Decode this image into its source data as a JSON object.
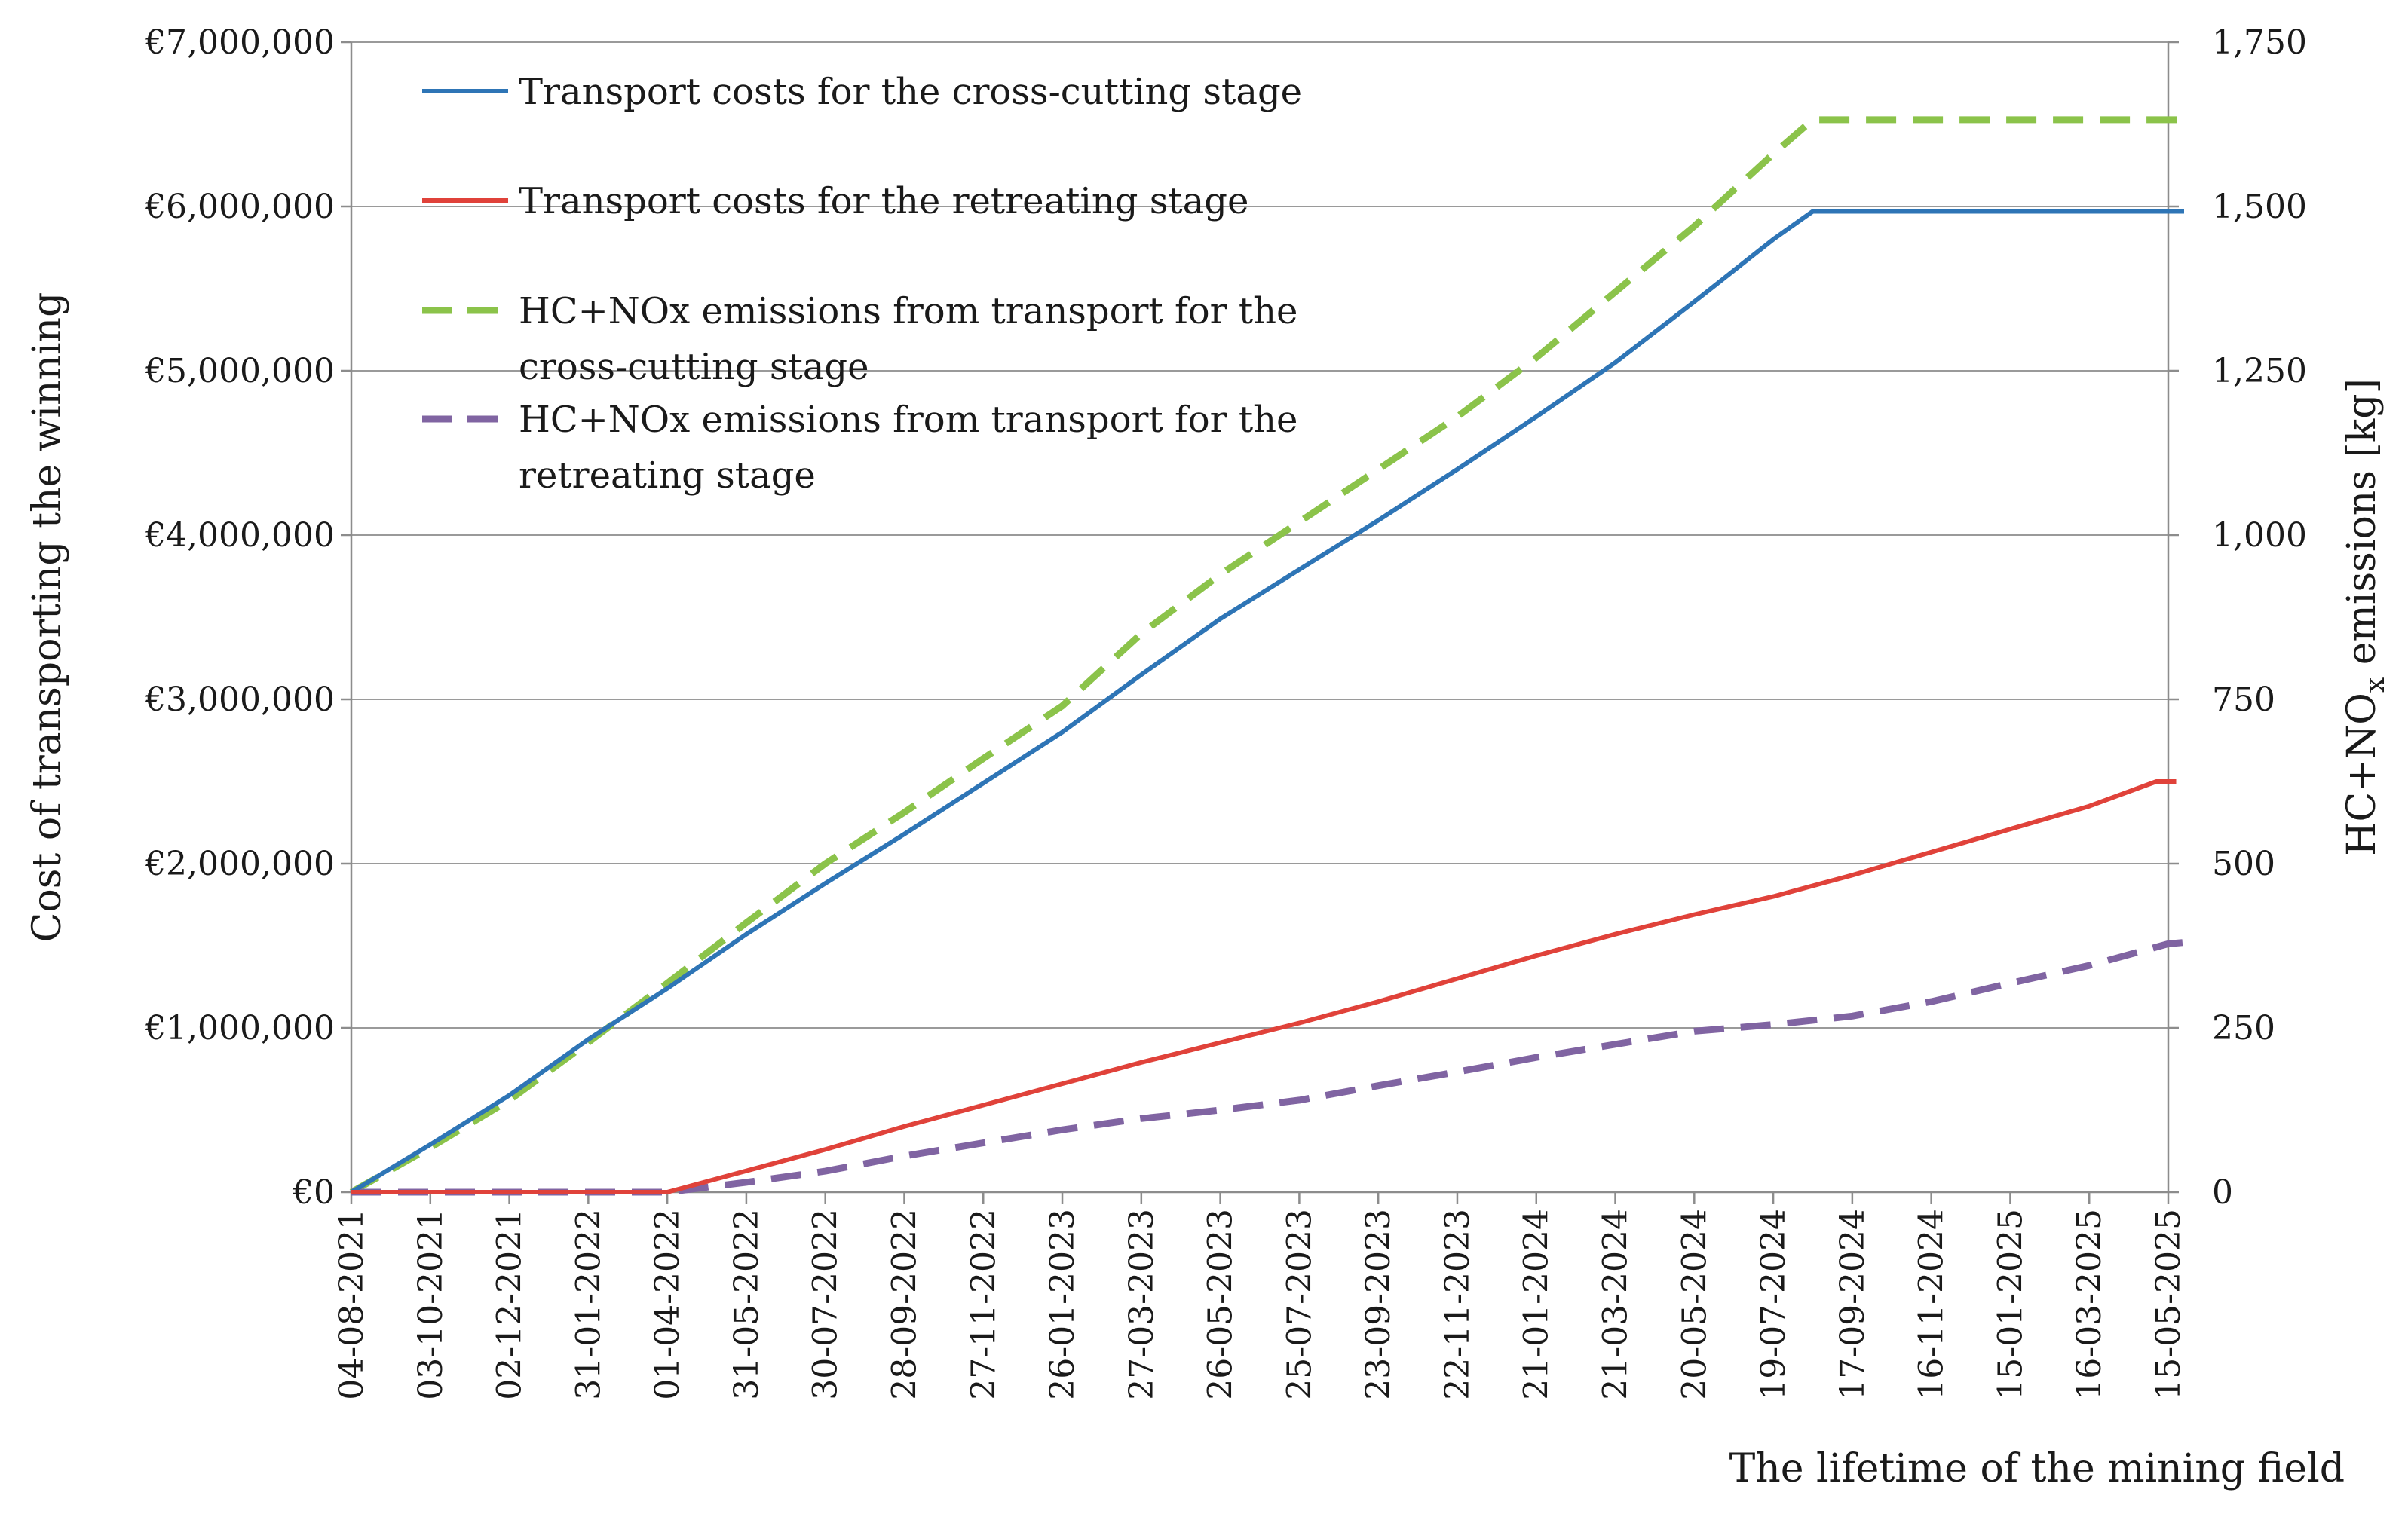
{
  "chart_data": {
    "type": "line",
    "title": "",
    "xlabel": "The lifetime of the mining field",
    "ylabel": "Cost of transporting  the winning",
    "y2label_parts": [
      "HC+NO",
      "x",
      " emissions  [kg]"
    ],
    "ylim": [
      0,
      7000000
    ],
    "y2lim": [
      0,
      1750
    ],
    "grid": true,
    "legend_position": "top-left",
    "y_ticks": [
      "€0",
      "€1,000,000",
      "€2,000,000",
      "€3,000,000",
      "€4,000,000",
      "€5,000,000",
      "€6,000,000",
      "€7,000,000"
    ],
    "y_tick_values": [
      0,
      1000000,
      2000000,
      3000000,
      4000000,
      5000000,
      6000000,
      7000000
    ],
    "y2_ticks": [
      "0",
      "250",
      "500",
      "750",
      "1,000",
      "1,250",
      "1,500",
      "1,750"
    ],
    "y2_tick_values": [
      0,
      250,
      500,
      750,
      1000,
      1250,
      1500,
      1750
    ],
    "x_ticks": [
      "04-08-2021",
      "03-10-2021",
      "02-12-2021",
      "31-01-2022",
      "01-04-2022",
      "31-05-2022",
      "30-07-2022",
      "28-09-2022",
      "27-11-2022",
      "26-01-2023",
      "27-03-2023",
      "26-05-2023",
      "25-07-2023",
      "23-09-2023",
      "22-11-2023",
      "21-01-2024",
      "21-03-2024",
      "20-05-2024",
      "19-07-2024",
      "17-09-2024",
      "16-11-2024",
      "15-01-2025",
      "16-03-2025",
      "15-05-2025"
    ],
    "series": [
      {
        "name": "Transport costs for the cross-cutting stage",
        "axis": "left",
        "color": "#2e75b6",
        "dashed": false,
        "x": [
          0,
          1,
          2,
          3,
          4,
          5,
          6,
          7,
          8,
          9,
          10,
          11,
          12,
          13,
          14,
          15,
          16,
          17,
          18,
          18.5,
          20,
          22,
          23,
          23.2
        ],
        "values": [
          0,
          290000,
          590000,
          930000,
          1240000,
          1570000,
          1880000,
          2180000,
          2490000,
          2800000,
          3150000,
          3490000,
          3790000,
          4090000,
          4400000,
          4720000,
          5050000,
          5420000,
          5800000,
          5970000,
          5970000,
          5970000,
          5970000,
          5970000
        ]
      },
      {
        "name": "Transport costs for the retreating stage",
        "axis": "left",
        "color": "#e0423a",
        "dashed": false,
        "x": [
          0,
          4,
          5,
          6,
          7,
          8,
          9,
          10,
          11,
          12,
          13,
          14,
          15,
          16,
          17,
          18,
          19,
          20,
          21,
          22,
          22.85,
          23.1
        ],
        "values": [
          0,
          0,
          130000,
          260000,
          400000,
          530000,
          660000,
          790000,
          910000,
          1030000,
          1160000,
          1300000,
          1440000,
          1570000,
          1690000,
          1800000,
          1930000,
          2070000,
          2210000,
          2350000,
          2500000,
          2500000
        ]
      },
      {
        "name": "HC+NOx emissions from transport for the cross-cutting stage",
        "axis": "right",
        "color": "#8bc34a",
        "dashed": true,
        "x": [
          0,
          1,
          2,
          3,
          4,
          5,
          6,
          7,
          8,
          9,
          10,
          11,
          12,
          13,
          14,
          15,
          16,
          17,
          18,
          18.5,
          20,
          22,
          23,
          23.2
        ],
        "values": [
          0,
          68,
          140,
          228,
          318,
          410,
          500,
          578,
          660,
          740,
          850,
          940,
          1020,
          1100,
          1180,
          1270,
          1370,
          1470,
          1580,
          1632,
          1632,
          1632,
          1632,
          1632
        ]
      },
      {
        "name": "HC+NOx emissions from transport for the retreating stage",
        "axis": "right",
        "color": "#8064a2",
        "dashed": true,
        "x": [
          0,
          4,
          5,
          6,
          7,
          8,
          9,
          10,
          11,
          12,
          13,
          14,
          15,
          16,
          17,
          18,
          19,
          20,
          21,
          22,
          23,
          23.2
        ],
        "values": [
          0,
          0,
          15,
          32,
          55,
          75,
          95,
          112,
          125,
          140,
          162,
          183,
          205,
          225,
          245,
          255,
          268,
          290,
          318,
          345,
          378,
          380
        ]
      }
    ],
    "legend_lines": [
      [
        "Transport costs for the cross-cutting stage"
      ],
      [
        "Transport costs for the retreating stage"
      ],
      [
        "HC+NOx emissions from transport for the",
        "cross-cutting stage"
      ],
      [
        "HC+NOx emissions from transport for the",
        "retreating stage"
      ]
    ]
  }
}
